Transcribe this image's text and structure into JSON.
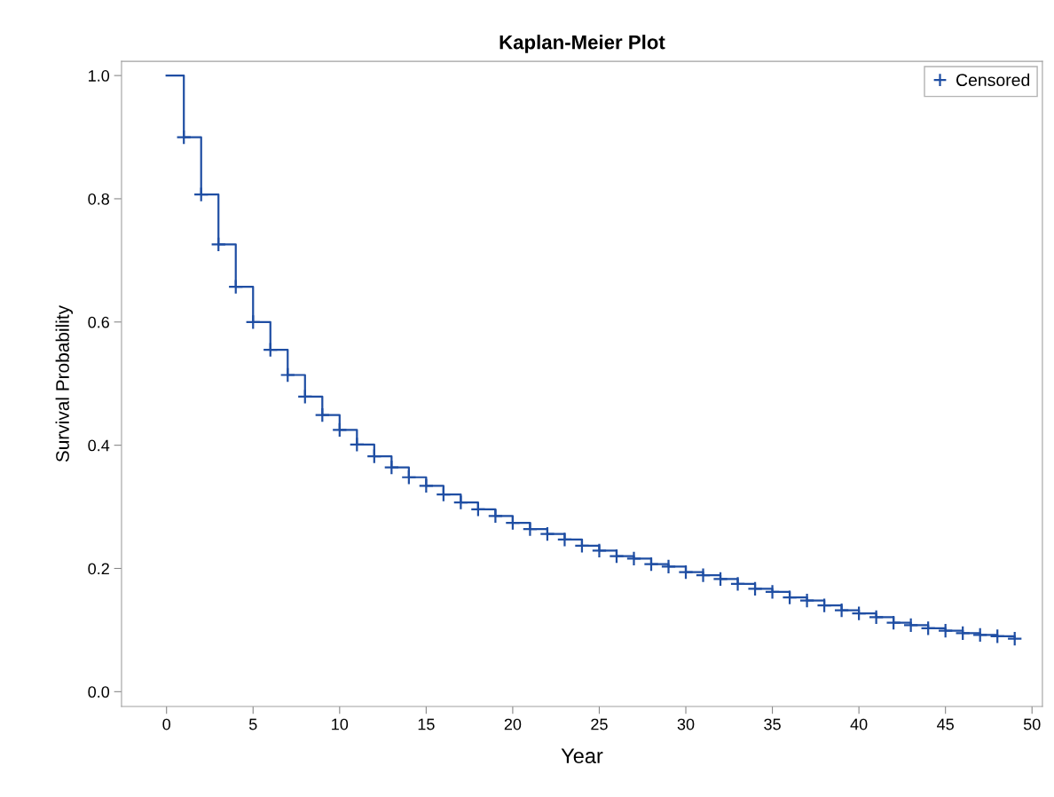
{
  "chart_data": {
    "type": "step",
    "title": "Kaplan-Meier Plot",
    "xlabel": "Year",
    "ylabel": "Survival Probability",
    "series": [
      {
        "color": "#1f4ea3",
        "x": [
          0,
          1,
          2,
          3,
          4,
          5,
          6,
          7,
          8,
          9,
          10,
          11,
          12,
          13,
          14,
          15,
          16,
          17,
          18,
          19,
          20,
          21,
          22,
          23,
          24,
          25,
          26,
          27,
          28,
          29,
          30,
          31,
          32,
          33,
          34,
          35,
          36,
          37,
          38,
          39,
          40,
          41,
          42,
          43,
          44,
          45,
          46,
          47,
          48,
          49
        ],
        "values": [
          1.0,
          0.9,
          0.807,
          0.726,
          0.657,
          0.6,
          0.555,
          0.514,
          0.479,
          0.449,
          0.425,
          0.401,
          0.382,
          0.364,
          0.348,
          0.334,
          0.32,
          0.307,
          0.296,
          0.285,
          0.274,
          0.264,
          0.256,
          0.247,
          0.237,
          0.229,
          0.22,
          0.216,
          0.207,
          0.203,
          0.194,
          0.189,
          0.183,
          0.175,
          0.167,
          0.162,
          0.153,
          0.148,
          0.14,
          0.132,
          0.127,
          0.121,
          0.112,
          0.108,
          0.103,
          0.099,
          0.095,
          0.092,
          0.09,
          0.086
        ]
      },
      {
        "type": "scatter",
        "name": "Censored",
        "color": "#1f4ea3",
        "marker": "cross",
        "x": [
          1,
          2,
          3,
          4,
          5,
          6,
          7,
          8,
          9,
          10,
          11,
          12,
          13,
          14,
          15,
          16,
          17,
          18,
          19,
          20,
          21,
          22,
          23,
          24,
          25,
          26,
          27,
          28,
          29,
          30,
          31,
          32,
          33,
          34,
          35,
          36,
          37,
          38,
          39,
          40,
          41,
          42,
          43,
          44,
          45,
          46,
          47,
          48,
          49
        ],
        "values": [
          0.9,
          0.807,
          0.726,
          0.657,
          0.6,
          0.555,
          0.514,
          0.479,
          0.449,
          0.425,
          0.401,
          0.382,
          0.364,
          0.348,
          0.334,
          0.32,
          0.307,
          0.296,
          0.285,
          0.274,
          0.264,
          0.256,
          0.247,
          0.237,
          0.229,
          0.22,
          0.216,
          0.207,
          0.203,
          0.194,
          0.189,
          0.183,
          0.175,
          0.167,
          0.162,
          0.153,
          0.148,
          0.14,
          0.132,
          0.127,
          0.121,
          0.112,
          0.108,
          0.103,
          0.099,
          0.095,
          0.092,
          0.09,
          0.086
        ]
      }
    ],
    "xlim": [
      -2.6,
      50.6
    ],
    "xticks": [
      0,
      5,
      10,
      15,
      20,
      25,
      30,
      35,
      40,
      45,
      50
    ],
    "ylim": [
      -0.024,
      1.023
    ],
    "yticks": [
      {
        "value": 0,
        "label": "0.0"
      },
      {
        "value": 0.2,
        "label": "0.2"
      },
      {
        "value": 0.4,
        "label": "0.4"
      },
      {
        "value": 0.6,
        "label": "0.6"
      },
      {
        "value": 0.8,
        "label": "0.8"
      },
      {
        "value": 1,
        "label": "1.0"
      }
    ],
    "grid": false,
    "legend": "top right"
  }
}
